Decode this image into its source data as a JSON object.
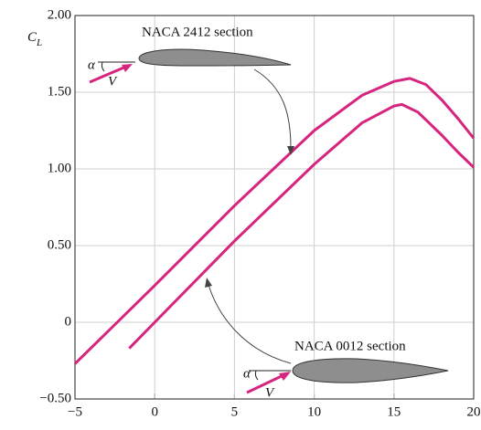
{
  "chart_data": {
    "type": "line",
    "y_label": "C",
    "y_label_subscript": "L",
    "angle_symbol": "α",
    "velocity_symbol": "V",
    "xlim": [
      -5,
      20
    ],
    "ylim": [
      -0.5,
      2.0
    ],
    "xticks": [
      {
        "value": -5,
        "label": "−5"
      },
      0,
      5,
      10,
      15,
      20
    ],
    "yticks": [
      {
        "value": -0.5,
        "label": "−0.50"
      },
      0,
      {
        "value": 0.5,
        "label": "0.50"
      },
      {
        "value": 1.0,
        "label": "1.00"
      },
      {
        "value": 1.5,
        "label": "1.50"
      },
      {
        "value": 2.0,
        "label": "2.00"
      }
    ],
    "grid": true,
    "series": [
      {
        "name": "NACA 2412 section",
        "color": "#d6247f",
        "x": [
          -5,
          0,
          5,
          10,
          13,
          15,
          16,
          17,
          18,
          19,
          20
        ],
        "values": [
          -0.27,
          0.24,
          0.76,
          1.25,
          1.48,
          1.57,
          1.59,
          1.55,
          1.45,
          1.33,
          1.2
        ]
      },
      {
        "name": "NACA 0012 section",
        "color": "#d6247f",
        "x": [
          -1.6,
          0,
          5,
          10,
          13,
          15,
          15.5,
          16.5,
          18,
          19,
          20
        ],
        "values": [
          -0.17,
          0,
          0.53,
          1.03,
          1.3,
          1.41,
          1.42,
          1.37,
          1.22,
          1.11,
          1.01
        ]
      }
    ]
  }
}
